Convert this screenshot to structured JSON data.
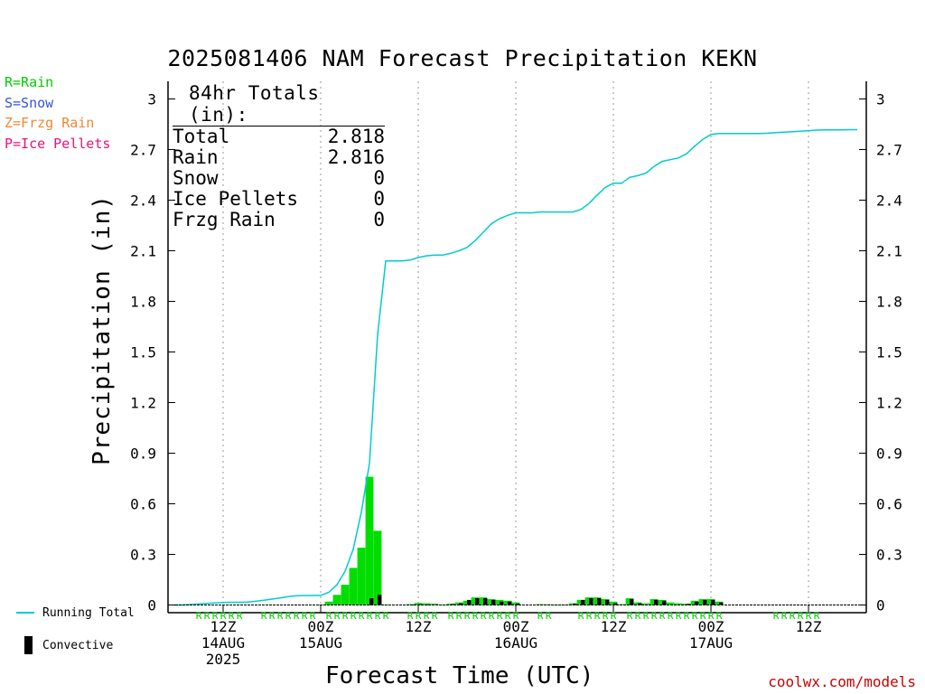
{
  "title": "2025081406 NAM Forecast Precipitation KEKN",
  "credit": "coolwx.com/models",
  "ptype_legend": [
    {
      "label": "R=Rain",
      "color": "#00cc00"
    },
    {
      "label": "S=Snow",
      "color": "#3355dd"
    },
    {
      "label": "Z=Frzg Rain",
      "color": "#ee8833"
    },
    {
      "label": "P=Ice Pellets",
      "color": "#ee1177"
    }
  ],
  "totals": {
    "heading": "84hr Totals (in):",
    "rows": [
      {
        "label": "Total",
        "value": "2.818"
      },
      {
        "label": "Rain",
        "value": "2.816"
      },
      {
        "label": "Snow",
        "value": "0"
      },
      {
        "label": "Ice Pellets",
        "value": "0"
      },
      {
        "label": "Frzg Rain",
        "value": "0"
      }
    ]
  },
  "series_legend": {
    "running_total": "Running Total",
    "convective": "Convective"
  },
  "colors": {
    "running_total": "#00cccc",
    "precip_bar": "#00dd00",
    "convective_bar": "#000000",
    "ptype_rain": "#00cc00",
    "grid": "#999999"
  },
  "chart_data": {
    "type": "bar",
    "title": "2025081406 NAM Forecast Precipitation KEKN",
    "xlabel": "Forecast Time (UTC)",
    "ylabel": "Precipitation (in)",
    "ylim": [
      0,
      3
    ],
    "y_ticks": [
      "0",
      "0.3",
      "0.6",
      "0.9",
      "1.2",
      "1.5",
      "1.8",
      "2.1",
      "2.4",
      "2.7",
      "3"
    ],
    "xlim_hours": [
      0,
      84
    ],
    "grid": "vertical dotted lines at 00Z and 12Z",
    "x_ticks": [
      {
        "hour": 6,
        "lines": [
          "12Z",
          "14AUG",
          "2025"
        ]
      },
      {
        "hour": 18,
        "lines": [
          "00Z",
          "15AUG"
        ]
      },
      {
        "hour": 30,
        "lines": [
          "12Z"
        ]
      },
      {
        "hour": 42,
        "lines": [
          "00Z",
          "16AUG"
        ]
      },
      {
        "hour": 54,
        "lines": [
          "12Z"
        ]
      },
      {
        "hour": 66,
        "lines": [
          "00Z",
          "17AUG"
        ]
      },
      {
        "hour": 78,
        "lines": [
          "12Z"
        ]
      }
    ],
    "running_total": {
      "name": "Running Total",
      "hours": [
        0,
        1,
        2,
        3,
        4,
        5,
        6,
        7,
        8,
        9,
        10,
        11,
        12,
        13,
        14,
        15,
        16,
        17,
        18,
        19,
        20,
        21,
        22,
        23,
        24,
        25,
        26,
        27,
        28,
        29,
        30,
        31,
        32,
        33,
        34,
        35,
        36,
        37,
        38,
        39,
        40,
        41,
        42,
        43,
        44,
        45,
        46,
        47,
        48,
        49,
        50,
        51,
        52,
        53,
        54,
        55,
        56,
        57,
        58,
        59,
        60,
        61,
        62,
        63,
        64,
        65,
        66,
        67,
        68,
        69,
        70,
        71,
        72,
        73,
        74,
        75,
        76,
        77,
        78,
        79,
        80,
        81,
        82,
        83,
        84
      ],
      "values": [
        0,
        0,
        0.003,
        0.006,
        0.009,
        0.012,
        0.015,
        0.016,
        0.016,
        0.017,
        0.022,
        0.028,
        0.035,
        0.042,
        0.05,
        0.055,
        0.056,
        0.056,
        0.057,
        0.075,
        0.12,
        0.2,
        0.33,
        0.55,
        0.84,
        1.6,
        2.04,
        2.04,
        2.04,
        2.045,
        2.06,
        2.07,
        2.075,
        2.075,
        2.085,
        2.1,
        2.12,
        2.16,
        2.21,
        2.26,
        2.29,
        2.31,
        2.325,
        2.325,
        2.325,
        2.33,
        2.33,
        2.33,
        2.33,
        2.33,
        2.345,
        2.38,
        2.43,
        2.475,
        2.5,
        2.5,
        2.535,
        2.545,
        2.56,
        2.6,
        2.63,
        2.64,
        2.65,
        2.675,
        2.72,
        2.76,
        2.79,
        2.795,
        2.795,
        2.795,
        2.795,
        2.795,
        2.795,
        2.797,
        2.8,
        2.803,
        2.806,
        2.809,
        2.812,
        2.815,
        2.816,
        2.817,
        2.817,
        2.818,
        2.818
      ]
    },
    "precip_bars": {
      "name": "Precipitation",
      "hours": [
        18,
        19,
        20,
        21,
        22,
        23,
        24,
        25,
        26,
        29,
        30,
        31,
        32,
        33,
        34,
        35,
        36,
        37,
        38,
        39,
        40,
        41,
        42,
        45,
        46,
        47,
        48,
        49,
        50,
        51,
        52,
        53,
        54,
        55,
        56,
        57,
        58,
        59,
        60,
        61,
        62,
        63,
        64,
        65,
        66,
        67
      ],
      "values": [
        0.002,
        0.02,
        0.06,
        0.12,
        0.22,
        0.34,
        0.76,
        0.44,
        0.002,
        0.005,
        0.012,
        0.01,
        0.008,
        0.002,
        0.008,
        0.015,
        0.025,
        0.045,
        0.045,
        0.035,
        0.03,
        0.025,
        0.015,
        0.005,
        0.004,
        0.002,
        0.002,
        0.01,
        0.03,
        0.045,
        0.045,
        0.035,
        0.02,
        0.005,
        0.04,
        0.015,
        0.01,
        0.035,
        0.03,
        0.015,
        0.01,
        0.008,
        0.025,
        0.035,
        0.035,
        0.02
      ]
    },
    "convective_bars": {
      "name": "Convective",
      "hours": [
        24,
        25,
        29,
        30,
        31,
        34,
        35,
        36,
        37,
        38,
        39,
        40,
        41,
        42,
        49,
        50,
        51,
        52,
        53,
        54,
        56,
        57,
        59,
        60,
        63,
        64,
        65,
        66,
        67
      ],
      "values": [
        0.04,
        0.06,
        0.002,
        0.004,
        0.003,
        0.005,
        0.01,
        0.03,
        0.04,
        0.04,
        0.03,
        0.02,
        0.02,
        0.008,
        0.008,
        0.03,
        0.04,
        0.04,
        0.03,
        0.01,
        0.035,
        0.01,
        0.03,
        0.025,
        0.006,
        0.02,
        0.03,
        0.03,
        0.015
      ]
    },
    "ptype_markers": [
      {
        "hours": [
          3,
          4,
          5,
          6,
          7,
          8
        ],
        "letter": "R"
      },
      {
        "hours": [
          11,
          12,
          13,
          14,
          15,
          16,
          17
        ],
        "letter": "R"
      },
      {
        "hours": [
          19,
          20,
          21,
          22,
          23,
          24,
          25,
          26
        ],
        "letter": "R"
      },
      {
        "hours": [
          29,
          30,
          31,
          32
        ],
        "letter": "R"
      },
      {
        "hours": [
          34,
          35,
          36,
          37,
          38,
          39,
          40,
          41,
          42
        ],
        "letter": "R"
      },
      {
        "hours": [
          45,
          46
        ],
        "letter": "R"
      },
      {
        "hours": [
          50,
          51,
          52,
          53,
          54
        ],
        "letter": "R"
      },
      {
        "hours": [
          56,
          57,
          58,
          59,
          60,
          61,
          62,
          63,
          64,
          65,
          66,
          67
        ],
        "letter": "R"
      },
      {
        "hours": [
          74,
          75,
          76,
          77,
          78,
          79
        ],
        "letter": "R"
      }
    ]
  }
}
